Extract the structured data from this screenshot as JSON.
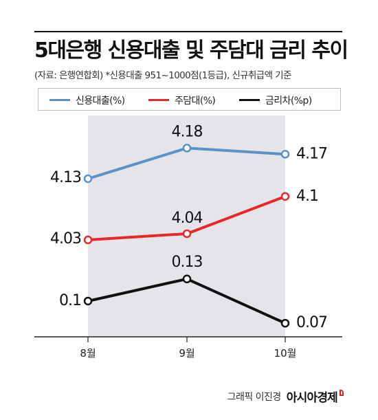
{
  "title": "5대은행 신용대출 및 주담대 금리 추이",
  "source_note": "(자료: 은행연합회)  *신용대출 951~1000점(1등급), 신규취급액 기준",
  "credit": {
    "author": "그래픽 이진경",
    "brand": "아시아경제"
  },
  "colors": {
    "credit_loan": "#5b92c6",
    "mortgage": "#e8262b",
    "spread": "#111111",
    "shade": "#e4e4e9"
  },
  "chart_data": {
    "type": "line",
    "categories": [
      "8월",
      "9월",
      "10월"
    ],
    "series": [
      {
        "name": "신용대출(%)",
        "values": [
          4.13,
          4.18,
          4.17
        ],
        "labels": [
          "4.13",
          "4.18",
          "4.17"
        ]
      },
      {
        "name": "주담대(%)",
        "values": [
          4.03,
          4.04,
          4.1
        ],
        "labels": [
          "4.03",
          "4.04",
          "4.1"
        ]
      },
      {
        "name": "금리차(%p)",
        "values": [
          0.1,
          0.13,
          0.07
        ],
        "labels": [
          "0.1",
          "0.13",
          "0.07"
        ]
      }
    ],
    "grid": false,
    "legend": "top"
  }
}
